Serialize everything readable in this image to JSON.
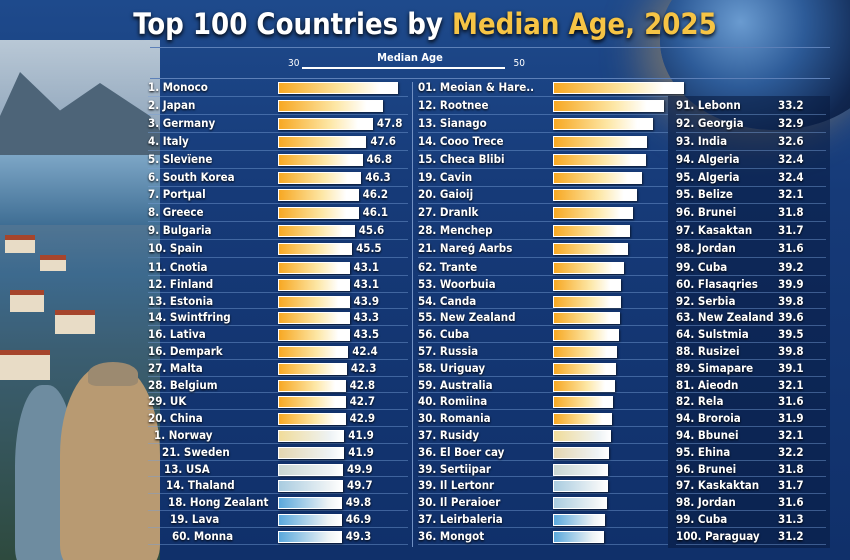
{
  "title": {
    "part1": "Top 100 Countries by ",
    "part2": "Median Age, 2025"
  },
  "chart_data": {
    "type": "bar",
    "title": "Top 100 Countries by Median Age, 2025",
    "axis": {
      "label": "Median Age",
      "min_label": "30",
      "max_label": "50"
    },
    "colors": {
      "gold": "#f7a823",
      "pale": "#f1dc9a",
      "beige": "#e4d6b0",
      "grey": "#c9d6d2",
      "lightblue": "#a9cce0",
      "blue": "#5aa8dc"
    },
    "columns": [
      {
        "rows": [
          {
            "label": "1. Monoco",
            "value": null,
            "bar": 0.92,
            "tone": "gold"
          },
          {
            "label": "2. Japan",
            "value": null,
            "bar": 0.81,
            "tone": "gold"
          },
          {
            "label": "3. Germany",
            "value": "47.8",
            "bar": 0.73,
            "tone": "gold"
          },
          {
            "label": "4. Italy",
            "value": "47.6",
            "bar": 0.68,
            "tone": "gold"
          },
          {
            "label": "5. Slevïene",
            "value": "46.8",
            "bar": 0.65,
            "tone": "gold"
          },
          {
            "label": "6. South Korea",
            "value": "46.3",
            "bar": 0.64,
            "tone": "gold"
          },
          {
            "label": "7. Portµal",
            "value": "46.2",
            "bar": 0.62,
            "tone": "gold"
          },
          {
            "label": "8. Greece",
            "value": "46.1",
            "bar": 0.62,
            "tone": "gold"
          },
          {
            "label": "9. Bulgaria",
            "value": "45.6",
            "bar": 0.59,
            "tone": "gold"
          },
          {
            "label": "10. Spain",
            "value": "45.5",
            "bar": 0.57,
            "tone": "gold"
          },
          {
            "label": "11. Cnotia",
            "value": "43.1",
            "bar": 0.55,
            "tone": "gold"
          },
          {
            "label": "12. Finland",
            "value": "43.1",
            "bar": 0.55,
            "tone": "gold"
          },
          {
            "label": "13. Estonia",
            "value": "43.9",
            "bar": 0.55,
            "tone": "gold"
          },
          {
            "label": "14. Swintfring",
            "value": "43.3",
            "bar": 0.55,
            "tone": "gold"
          },
          {
            "label": "16. Lativa",
            "value": "43.5",
            "bar": 0.55,
            "tone": "gold"
          },
          {
            "label": "16. Dempark",
            "value": "42.4",
            "bar": 0.54,
            "tone": "gold"
          },
          {
            "label": "27. Malta",
            "value": "42.3",
            "bar": 0.53,
            "tone": "gold"
          },
          {
            "label": "28. Belgium",
            "value": "42.8",
            "bar": 0.52,
            "tone": "gold"
          },
          {
            "label": "29. UK",
            "value": "42.7",
            "bar": 0.52,
            "tone": "gold"
          },
          {
            "label": "20. China",
            "value": "42.9",
            "bar": 0.52,
            "tone": "gold"
          },
          {
            "label": "1. Norway",
            "value": "41.9",
            "bar": 0.51,
            "tone": "pale"
          },
          {
            "label": "21. Sweden",
            "value": "41.9",
            "bar": 0.51,
            "tone": "beige"
          },
          {
            "label": "13. USA",
            "value": "49.9",
            "bar": 0.5,
            "tone": "grey"
          },
          {
            "label": "14. Thaland",
            "value": "49.7",
            "bar": 0.5,
            "tone": "lightblue"
          },
          {
            "label": "18. Hong Zealant",
            "value": "49.8",
            "bar": 0.49,
            "tone": "blue"
          },
          {
            "label": "19. Lava",
            "value": "46.9",
            "bar": 0.49,
            "tone": "blue"
          },
          {
            "label": "60. Monna",
            "value": "49.3",
            "bar": 0.49,
            "tone": "blue"
          }
        ]
      },
      {
        "rows": [
          {
            "label": "01. Meoian & Hare..",
            "bar": 1.0,
            "tone": "gold"
          },
          {
            "label": "12. Rootnee",
            "bar": 0.85,
            "tone": "gold"
          },
          {
            "label": "13. Sianago",
            "bar": 0.76,
            "tone": "gold"
          },
          {
            "label": "14. Cooo Trece",
            "bar": 0.72,
            "tone": "gold"
          },
          {
            "label": "15. Checa Blibi",
            "bar": 0.71,
            "tone": "gold"
          },
          {
            "label": "19. Cavin",
            "bar": 0.68,
            "tone": "gold"
          },
          {
            "label": "20. Gaioij",
            "bar": 0.64,
            "tone": "gold"
          },
          {
            "label": "27. Dranlk",
            "bar": 0.61,
            "tone": "gold"
          },
          {
            "label": "28. Menchep",
            "bar": 0.59,
            "tone": "gold"
          },
          {
            "label": "21. Nareģ Aarbs",
            "bar": 0.57,
            "tone": "gold"
          },
          {
            "label": "62. Trante",
            "bar": 0.54,
            "tone": "gold"
          },
          {
            "label": "53. Woorbuia",
            "bar": 0.52,
            "tone": "gold"
          },
          {
            "label": "54. Canda",
            "bar": 0.52,
            "tone": "gold"
          },
          {
            "label": "55. New Zealand",
            "bar": 0.51,
            "tone": "gold"
          },
          {
            "label": "56. Cuba",
            "bar": 0.5,
            "tone": "gold"
          },
          {
            "label": "57. Russia",
            "bar": 0.49,
            "tone": "gold"
          },
          {
            "label": "58. Uriguay",
            "bar": 0.48,
            "tone": "gold"
          },
          {
            "label": "59. Australia",
            "bar": 0.47,
            "tone": "gold"
          },
          {
            "label": "40. Romiina",
            "bar": 0.46,
            "tone": "gold"
          },
          {
            "label": "30. Romania",
            "bar": 0.45,
            "tone": "gold"
          },
          {
            "label": "37. Rusidy",
            "bar": 0.44,
            "tone": "pale"
          },
          {
            "label": "36. El Boer cay",
            "bar": 0.43,
            "tone": "beige"
          },
          {
            "label": "39. Sertiipar",
            "bar": 0.42,
            "tone": "grey"
          },
          {
            "label": "39. Il Lertonr",
            "bar": 0.42,
            "tone": "lightblue"
          },
          {
            "label": "30. Il Peraioer",
            "bar": 0.41,
            "tone": "lightblue"
          },
          {
            "label": "37. Leirbaleria",
            "bar": 0.4,
            "tone": "blue"
          },
          {
            "label": "36. Mongot",
            "bar": 0.39,
            "tone": "blue"
          }
        ]
      },
      {
        "rows": [
          {
            "label": "91. Lebonn",
            "value": "33.2"
          },
          {
            "label": "92. Georgia",
            "value": "32.9"
          },
          {
            "label": "93. India",
            "value": "32.6"
          },
          {
            "label": "94. Algeria",
            "value": "32.4"
          },
          {
            "label": "95. Algeria",
            "value": "32.4"
          },
          {
            "label": "95. Belize",
            "value": "32.1"
          },
          {
            "label": "96. Brunei",
            "value": "31.8"
          },
          {
            "label": "97. Kasaktan",
            "value": "31.7"
          },
          {
            "label": "98. Jordan",
            "value": "31.6"
          },
          {
            "label": "99. Cuba",
            "value": "39.2"
          },
          {
            "label": "60. Flasaqries",
            "value": "39.9"
          },
          {
            "label": "92. Serbia",
            "value": "39.8"
          },
          {
            "label": "63. New Zealand",
            "value": "39.6"
          },
          {
            "label": "64. Sulstmia",
            "value": "39.5"
          },
          {
            "label": "88. Rusizei",
            "value": "39.8"
          },
          {
            "label": "89. Simapare",
            "value": "39.1"
          },
          {
            "label": "81. Aieodn",
            "value": "32.1"
          },
          {
            "label": "82. Rela",
            "value": "31.6"
          },
          {
            "label": "94. Broroia",
            "value": "31.9"
          },
          {
            "label": "94. Bbunei",
            "value": "32.1"
          },
          {
            "label": "95. Ehina",
            "value": "32.2"
          },
          {
            "label": "96. Brunei",
            "value": "31.8"
          },
          {
            "label": "97. Kaskaktan",
            "value": "31.7"
          },
          {
            "label": "98. Jordan",
            "value": "31.6"
          },
          {
            "label": "99. Cuba",
            "value": "31.3"
          },
          {
            "label": "100. Paraguay",
            "value": "31.2"
          }
        ]
      }
    ]
  }
}
